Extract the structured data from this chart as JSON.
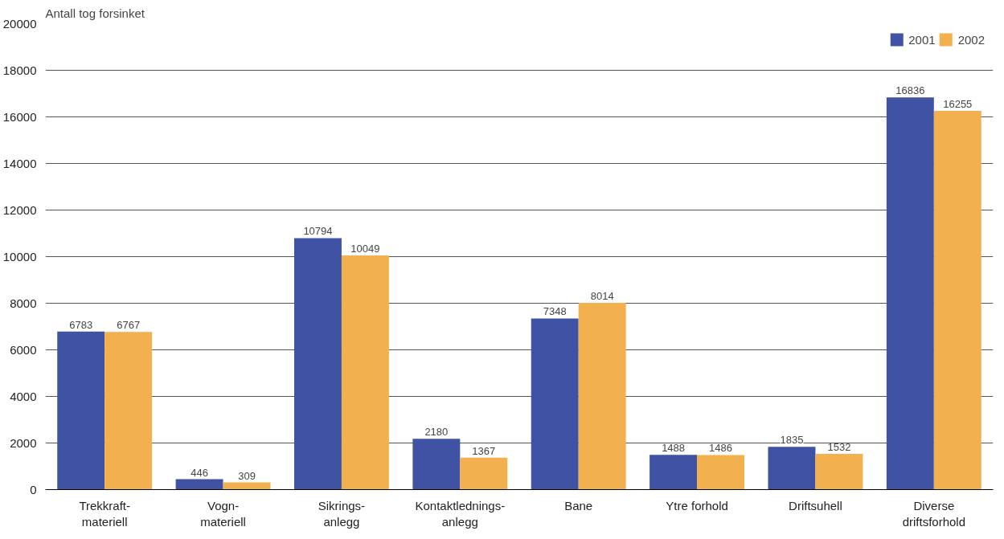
{
  "chart_data": {
    "type": "bar",
    "ylabel": "Antall tog forsinket",
    "categories": [
      "Trekkraft-\nmateriell",
      "Vogn-\nmateriell",
      "Sikrings-\nanlegg",
      "Kontaktlednings-\nanlegg",
      "Bane",
      "Ytre forhold",
      "Driftsuhell",
      "Diverse\ndriftsforhold"
    ],
    "series": [
      {
        "name": "2001",
        "color": "#3f52a3",
        "values": [
          6783,
          446,
          10794,
          2180,
          7348,
          1488,
          1835,
          16836
        ]
      },
      {
        "name": "2002",
        "color": "#f2b04f",
        "values": [
          6767,
          309,
          10049,
          1367,
          8014,
          1486,
          1532,
          16255
        ]
      }
    ],
    "ylim": [
      0,
      20000
    ],
    "yticks": [
      0,
      2000,
      4000,
      6000,
      8000,
      10000,
      12000,
      14000,
      16000,
      18000,
      20000
    ],
    "grid": "y",
    "legend": "top right",
    "data_labels": true
  }
}
